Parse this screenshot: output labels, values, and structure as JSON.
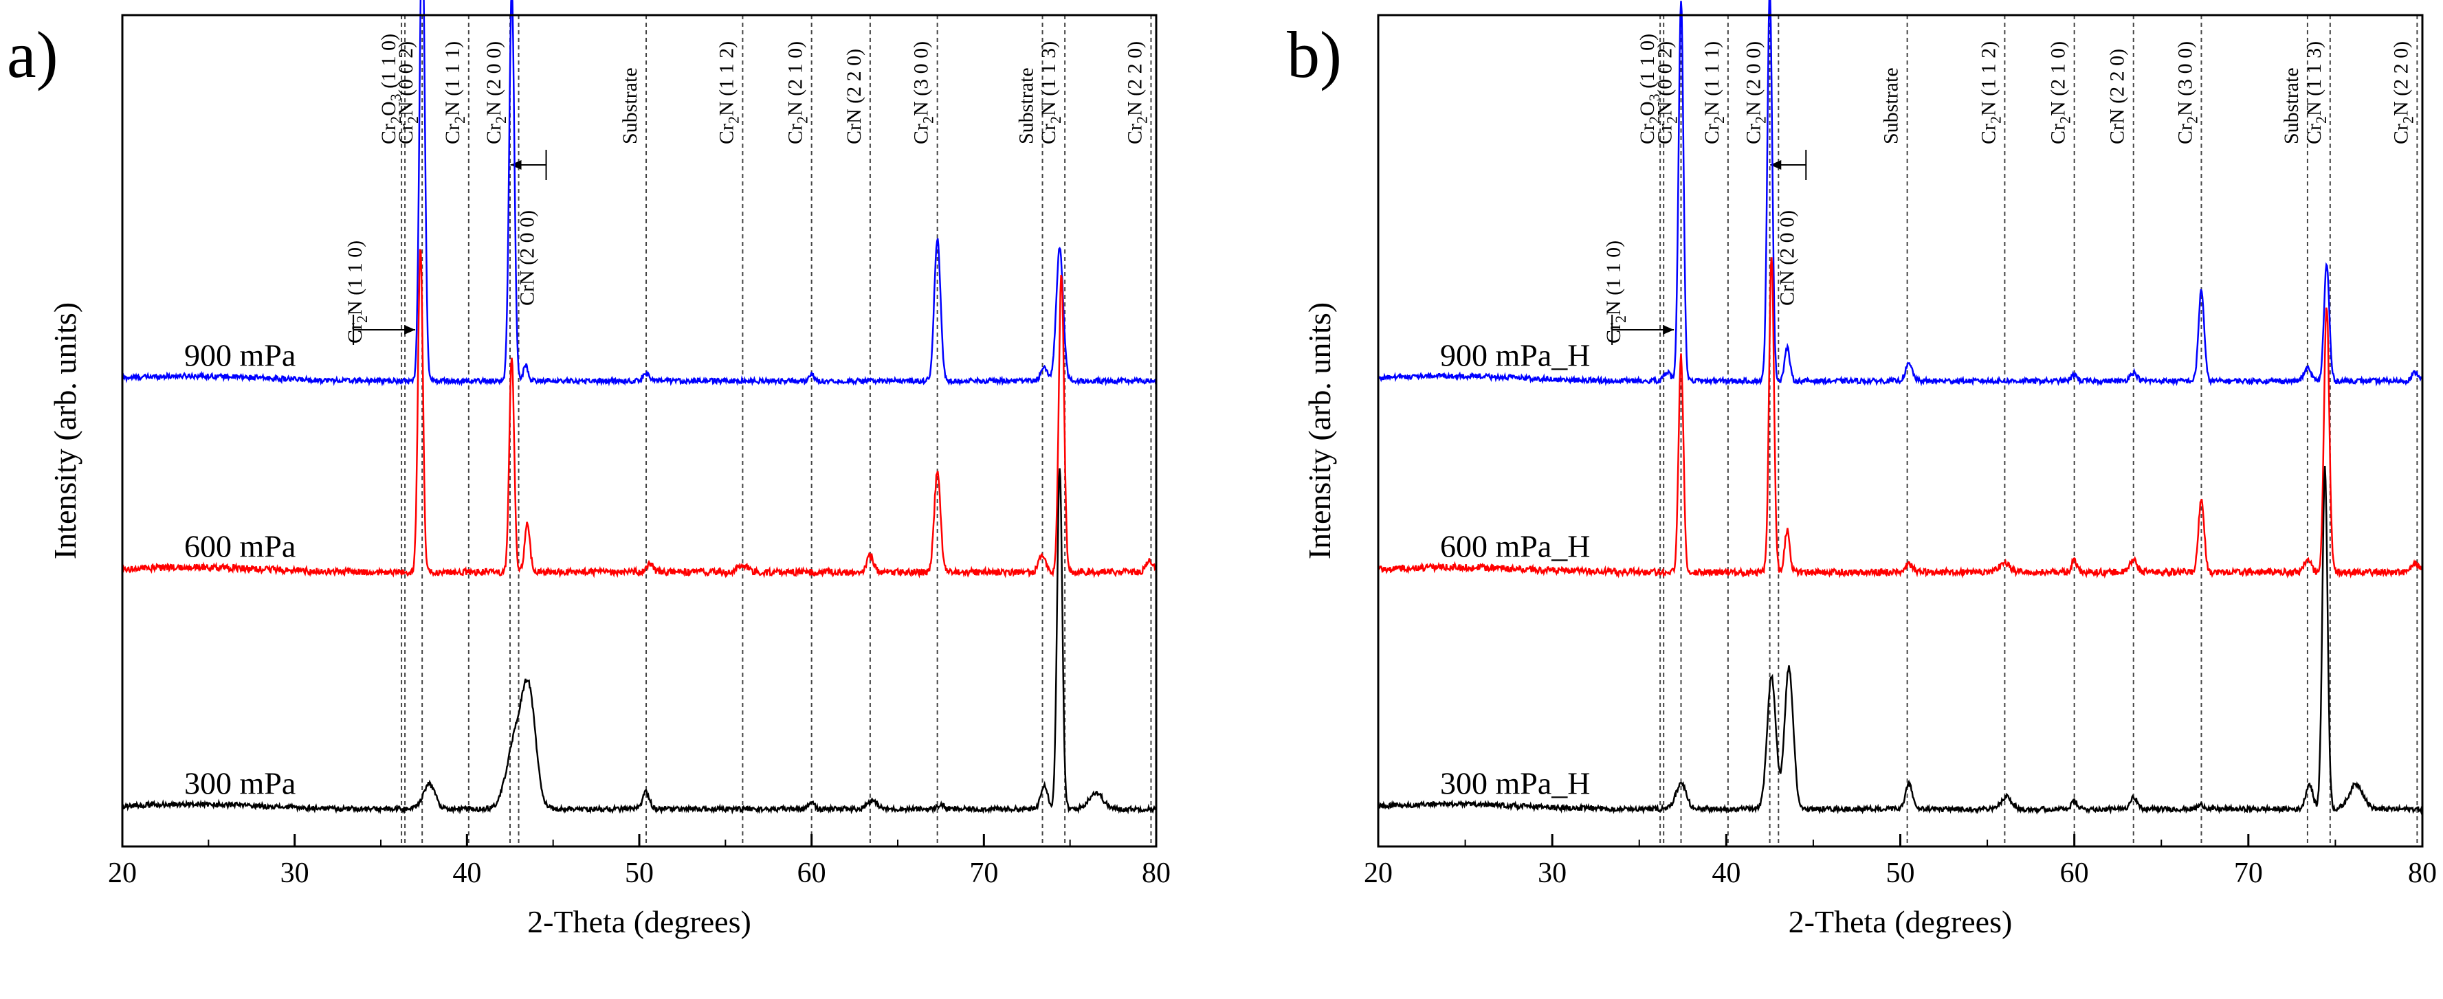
{
  "figure": {
    "panels": [
      {
        "panel_label": "a)",
        "xlabel": "2-Theta (degrees)",
        "ylabel": "Intensity (arb. units)"
      },
      {
        "panel_label": "b)",
        "xlabel": "2-Theta (degrees)",
        "ylabel": "Intensity (arb. units)"
      }
    ]
  },
  "chart_data": [
    {
      "type": "line",
      "title": "a)",
      "xlabel": "2-Theta (degrees)",
      "ylabel": "Intensity (arb. units)",
      "xlim": [
        20,
        80
      ],
      "x_ticks": [
        20,
        30,
        40,
        50,
        60,
        70,
        80
      ],
      "y_ticks": false,
      "reference_lines": [
        {
          "pos": 36.2,
          "label": "Cr2N (1 1 0)"
        },
        {
          "pos": 36.4,
          "label": "Cr2O3 (1 1 0)"
        },
        {
          "pos": 37.4,
          "label": "Cr2N (0 0 2)"
        },
        {
          "pos": 40.1,
          "label": "Cr2N (1 1 1)"
        },
        {
          "pos": 42.5,
          "label": "Cr2N (2 0 0)"
        },
        {
          "pos": 43.0,
          "label": "CrN (2 0 0)"
        },
        {
          "pos": 50.4,
          "label": "Substrate"
        },
        {
          "pos": 56.0,
          "label": "Cr2N (1 1 2)"
        },
        {
          "pos": 60.0,
          "label": "Cr2N (2 1 0)"
        },
        {
          "pos": 63.4,
          "label": "CrN (2 2 0)"
        },
        {
          "pos": 67.3,
          "label": "Cr2N (3 0 0)"
        },
        {
          "pos": 73.4,
          "label": "Substrate"
        },
        {
          "pos": 74.7,
          "label": "Cr2N (1 1 3)"
        },
        {
          "pos": 79.7,
          "label": "Cr2N (2 2 0)"
        }
      ],
      "series": [
        {
          "name": "900 mPa",
          "color": "#0000ff",
          "baseline": 0.12,
          "noise": 0.003,
          "peaks": [
            [
              37.4,
              0.56,
              0.15
            ],
            [
              42.6,
              0.47,
              0.15
            ],
            [
              43.4,
              0.02,
              0.12
            ],
            [
              50.4,
              0.01,
              0.18
            ],
            [
              60.0,
              0.008,
              0.12
            ],
            [
              67.3,
              0.17,
              0.18
            ],
            [
              73.5,
              0.015,
              0.2
            ],
            [
              74.4,
              0.16,
              0.2
            ]
          ]
        },
        {
          "name": "600 mPa",
          "color": "#ff0000",
          "baseline": 0.12,
          "noise": 0.004,
          "peaks": [
            [
              37.3,
              0.39,
              0.14
            ],
            [
              42.6,
              0.26,
              0.14
            ],
            [
              43.5,
              0.06,
              0.15
            ],
            [
              50.6,
              0.01,
              0.2
            ],
            [
              56.0,
              0.008,
              0.3
            ],
            [
              63.4,
              0.02,
              0.2
            ],
            [
              67.3,
              0.12,
              0.18
            ],
            [
              73.4,
              0.02,
              0.2
            ],
            [
              74.5,
              0.36,
              0.15
            ],
            [
              79.6,
              0.015,
              0.2
            ]
          ]
        },
        {
          "name": "300 mPa",
          "color": "#000000",
          "baseline": 0.12,
          "noise": 0.003,
          "peaks": [
            [
              37.8,
              0.03,
              0.35
            ],
            [
              42.8,
              0.08,
              0.5
            ],
            [
              43.6,
              0.13,
              0.4
            ],
            [
              50.4,
              0.02,
              0.2
            ],
            [
              60.0,
              0.01,
              0.15
            ],
            [
              63.5,
              0.01,
              0.3
            ],
            [
              67.5,
              0.005,
              0.2
            ],
            [
              73.5,
              0.03,
              0.2
            ],
            [
              74.4,
              0.41,
              0.15
            ],
            [
              76.5,
              0.02,
              0.4
            ]
          ]
        }
      ]
    },
    {
      "type": "line",
      "title": "b)",
      "xlabel": "2-Theta (degrees)",
      "ylabel": "Intensity (arb. units)",
      "xlim": [
        20,
        80
      ],
      "x_ticks": [
        20,
        30,
        40,
        50,
        60,
        70,
        80
      ],
      "y_ticks": false,
      "reference_lines": [
        {
          "pos": 36.2,
          "label": "Cr2N (1 1 0)"
        },
        {
          "pos": 36.4,
          "label": "Cr2O3 (1 1 0)"
        },
        {
          "pos": 37.4,
          "label": "Cr2N (0 0 2)"
        },
        {
          "pos": 40.1,
          "label": "Cr2N (1 1 1)"
        },
        {
          "pos": 42.5,
          "label": "Cr2N (2 0 0)"
        },
        {
          "pos": 43.0,
          "label": "CrN (2 0 0)"
        },
        {
          "pos": 50.4,
          "label": "Substrate"
        },
        {
          "pos": 56.0,
          "label": "Cr2N (1 1 2)"
        },
        {
          "pos": 60.0,
          "label": "Cr2N (2 1 0)"
        },
        {
          "pos": 63.4,
          "label": "CrN (2 2 0)"
        },
        {
          "pos": 67.3,
          "label": "Cr2N (3 0 0)"
        },
        {
          "pos": 73.4,
          "label": "Substrate"
        },
        {
          "pos": 74.7,
          "label": "Cr2N (1 1 3)"
        },
        {
          "pos": 79.7,
          "label": "Cr2N (2 2 0)"
        }
      ],
      "series": [
        {
          "name": "900 mPa_H",
          "color": "#0000ff",
          "baseline": 0.12,
          "noise": 0.003,
          "peaks": [
            [
              36.6,
              0.01,
              0.2
            ],
            [
              37.4,
              0.46,
              0.14
            ],
            [
              42.5,
              0.47,
              0.14
            ],
            [
              43.5,
              0.04,
              0.15
            ],
            [
              50.5,
              0.02,
              0.2
            ],
            [
              60.0,
              0.008,
              0.15
            ],
            [
              63.4,
              0.01,
              0.2
            ],
            [
              67.3,
              0.11,
              0.16
            ],
            [
              73.4,
              0.015,
              0.2
            ],
            [
              74.5,
              0.14,
              0.15
            ],
            [
              79.6,
              0.01,
              0.2
            ]
          ]
        },
        {
          "name": "600 mPa_H",
          "color": "#ff0000",
          "baseline": 0.12,
          "noise": 0.004,
          "peaks": [
            [
              37.4,
              0.26,
              0.14
            ],
            [
              42.6,
              0.38,
              0.14
            ],
            [
              43.5,
              0.05,
              0.15
            ],
            [
              50.5,
              0.01,
              0.2
            ],
            [
              56.0,
              0.01,
              0.3
            ],
            [
              60.0,
              0.015,
              0.15
            ],
            [
              63.4,
              0.015,
              0.2
            ],
            [
              67.3,
              0.09,
              0.16
            ],
            [
              73.4,
              0.015,
              0.2
            ],
            [
              74.5,
              0.32,
              0.15
            ],
            [
              79.6,
              0.01,
              0.2
            ]
          ]
        },
        {
          "name": "300 mPa_H",
          "color": "#000000",
          "baseline": 0.12,
          "noise": 0.003,
          "peaks": [
            [
              37.4,
              0.03,
              0.3
            ],
            [
              42.6,
              0.16,
              0.25
            ],
            [
              43.6,
              0.17,
              0.25
            ],
            [
              50.5,
              0.03,
              0.2
            ],
            [
              56.1,
              0.015,
              0.3
            ],
            [
              60.0,
              0.01,
              0.15
            ],
            [
              63.4,
              0.015,
              0.2
            ],
            [
              67.3,
              0.005,
              0.2
            ],
            [
              73.5,
              0.03,
              0.2
            ],
            [
              74.4,
              0.41,
              0.15
            ],
            [
              76.2,
              0.03,
              0.4
            ]
          ]
        }
      ]
    }
  ]
}
